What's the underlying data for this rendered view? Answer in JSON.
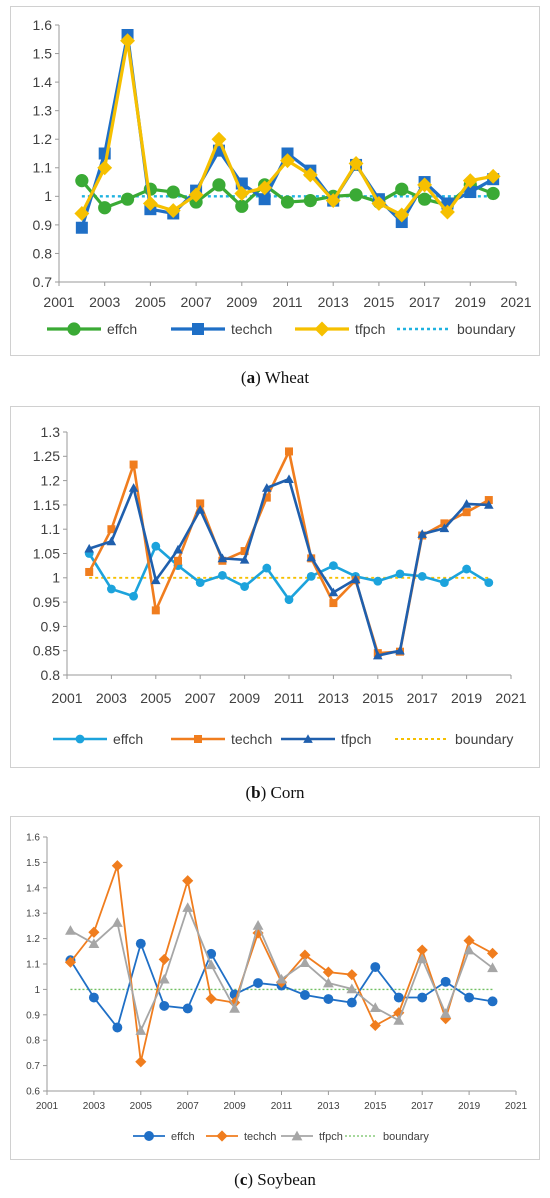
{
  "captions": [
    {
      "letter": "a",
      "open": "(",
      "close": ") ",
      "name": "Wheat"
    },
    {
      "letter": "b",
      "open": "(",
      "close": ") ",
      "name": "Corn"
    },
    {
      "letter": "c",
      "open": "(",
      "close": ") ",
      "name": "Soybean"
    }
  ],
  "chart_data": [
    {
      "type": "line",
      "title": "",
      "xlabel": "",
      "ylabel": "",
      "xlim": [
        2001,
        2021
      ],
      "ylim": [
        0.7,
        1.6
      ],
      "xticks": [
        2001,
        2003,
        2005,
        2007,
        2009,
        2011,
        2013,
        2015,
        2017,
        2019,
        2021
      ],
      "yticks": [
        0.7,
        0.8,
        0.9,
        1.0,
        1.1,
        1.2,
        1.3,
        1.4,
        1.5,
        1.6
      ],
      "ytick_labels": [
        "0.7",
        "0.8",
        "0.9",
        "1",
        "1.1",
        "1.2",
        "1.3",
        "1.4",
        "1.5",
        "1.6"
      ],
      "grid": false,
      "legend_position": "bottom",
      "x": [
        2002,
        2003,
        2004,
        2005,
        2006,
        2007,
        2008,
        2009,
        2010,
        2011,
        2012,
        2013,
        2014,
        2015,
        2016,
        2017,
        2018,
        2019,
        2020
      ],
      "series": [
        {
          "name": "effch",
          "color": "#3aaa35",
          "marker": "circle",
          "values": [
            1.055,
            0.96,
            0.99,
            1.025,
            1.015,
            0.98,
            1.04,
            0.965,
            1.04,
            0.98,
            0.985,
            1.0,
            1.005,
            0.98,
            1.025,
            0.99,
            0.97,
            1.04,
            1.01
          ]
        },
        {
          "name": "techch",
          "color": "#1f6fc6",
          "marker": "square",
          "values": [
            0.89,
            1.15,
            1.565,
            0.955,
            0.94,
            1.02,
            1.16,
            1.045,
            0.99,
            1.15,
            1.09,
            0.985,
            1.11,
            0.99,
            0.91,
            1.05,
            0.975,
            1.015,
            1.06
          ]
        },
        {
          "name": "tfpch",
          "color": "#f6c000",
          "marker": "diamond",
          "values": [
            0.94,
            1.1,
            1.545,
            0.975,
            0.95,
            1.005,
            1.2,
            1.01,
            1.03,
            1.125,
            1.075,
            0.985,
            1.115,
            0.975,
            0.935,
            1.04,
            0.945,
            1.055,
            1.07
          ]
        },
        {
          "name": "boundary",
          "color": "#1fb2e0",
          "marker": "none",
          "dashed": true,
          "values": [
            1,
            1,
            1,
            1,
            1,
            1,
            1,
            1,
            1,
            1,
            1,
            1,
            1,
            1,
            1,
            1,
            1,
            1,
            1
          ]
        }
      ]
    },
    {
      "type": "line",
      "title": "",
      "xlabel": "",
      "ylabel": "",
      "xlim": [
        2001,
        2021
      ],
      "ylim": [
        0.8,
        1.3
      ],
      "xticks": [
        2001,
        2003,
        2005,
        2007,
        2009,
        2011,
        2013,
        2015,
        2017,
        2019,
        2021
      ],
      "yticks": [
        0.8,
        0.85,
        0.9,
        0.95,
        1.0,
        1.05,
        1.1,
        1.15,
        1.2,
        1.25,
        1.3
      ],
      "ytick_labels": [
        "0.8",
        "0.85",
        "0.9",
        "0.95",
        "1",
        "1.05",
        "1.1",
        "1.15",
        "1.2",
        "1.25",
        "1.3"
      ],
      "grid": false,
      "legend_position": "bottom",
      "x": [
        2002,
        2003,
        2004,
        2005,
        2006,
        2007,
        2008,
        2009,
        2010,
        2011,
        2012,
        2013,
        2014,
        2015,
        2016,
        2017,
        2018,
        2019,
        2020
      ],
      "series": [
        {
          "name": "effch",
          "color": "#1ca3dc",
          "marker": "circle",
          "values": [
            1.05,
            0.977,
            0.962,
            1.065,
            1.025,
            0.99,
            1.005,
            0.982,
            1.02,
            0.955,
            1.003,
            1.025,
            1.003,
            0.993,
            1.008,
            1.003,
            0.99,
            1.018,
            0.99
          ]
        },
        {
          "name": "techch",
          "color": "#f07d1e",
          "marker": "square",
          "values": [
            1.012,
            1.1,
            1.233,
            0.933,
            1.035,
            1.153,
            1.035,
            1.055,
            1.165,
            1.26,
            1.04,
            0.948,
            0.995,
            0.845,
            0.848,
            1.087,
            1.112,
            1.135,
            1.16
          ]
        },
        {
          "name": "tfpch",
          "color": "#1f5fad",
          "marker": "triangle",
          "values": [
            1.06,
            1.075,
            1.185,
            0.995,
            1.058,
            1.14,
            1.04,
            1.037,
            1.185,
            1.203,
            1.042,
            0.97,
            0.997,
            0.84,
            0.85,
            1.09,
            1.102,
            1.152,
            1.15
          ]
        },
        {
          "name": "boundary",
          "color": "#f6c000",
          "marker": "none",
          "dashed": true,
          "values": [
            1,
            1,
            1,
            1,
            1,
            1,
            1,
            1,
            1,
            1,
            1,
            1,
            1,
            1,
            1,
            1,
            1,
            1,
            1
          ]
        }
      ]
    },
    {
      "type": "line",
      "title": "",
      "xlabel": "",
      "ylabel": "",
      "xlim": [
        2001,
        2021
      ],
      "ylim": [
        0.6,
        1.6
      ],
      "xticks": [
        2001,
        2003,
        2005,
        2007,
        2009,
        2011,
        2013,
        2015,
        2017,
        2019,
        2021
      ],
      "yticks": [
        0.6,
        0.7,
        0.8,
        0.9,
        1.0,
        1.1,
        1.2,
        1.3,
        1.4,
        1.5,
        1.6
      ],
      "ytick_labels": [
        "0.6",
        "0.7",
        "0.8",
        "0.9",
        "1",
        "1.1",
        "1.2",
        "1.3",
        "1.4",
        "1.5",
        "1.6"
      ],
      "grid": false,
      "legend_position": "bottom",
      "x": [
        2002,
        2003,
        2004,
        2005,
        2006,
        2007,
        2008,
        2009,
        2010,
        2011,
        2012,
        2013,
        2014,
        2015,
        2016,
        2017,
        2018,
        2019,
        2020
      ],
      "series": [
        {
          "name": "effch",
          "color": "#1f6fc6",
          "marker": "circle",
          "values": [
            1.115,
            0.968,
            0.85,
            1.18,
            0.935,
            0.925,
            1.14,
            0.98,
            1.025,
            1.015,
            0.978,
            0.962,
            0.948,
            1.088,
            0.968,
            0.968,
            1.03,
            0.968,
            0.953
          ]
        },
        {
          "name": "techch",
          "color": "#f07d1e",
          "marker": "diamond",
          "values": [
            1.107,
            1.225,
            1.487,
            0.715,
            1.118,
            1.428,
            0.963,
            0.948,
            1.222,
            1.028,
            1.135,
            1.068,
            1.058,
            0.858,
            0.908,
            1.155,
            0.885,
            1.192,
            1.142
          ]
        },
        {
          "name": "tfpch",
          "color": "#a6a6a6",
          "marker": "triangle",
          "values": [
            1.232,
            1.18,
            1.263,
            0.838,
            1.04,
            1.322,
            1.097,
            0.925,
            1.252,
            1.04,
            1.105,
            1.025,
            1.002,
            0.928,
            0.878,
            1.12,
            0.905,
            1.155,
            1.085
          ]
        },
        {
          "name": "boundary",
          "color": "#70c060",
          "marker": "none",
          "dashed": true,
          "values": [
            1,
            1,
            1,
            1,
            1,
            1,
            1,
            1,
            1,
            1,
            1,
            1,
            1,
            1,
            1,
            1,
            1,
            1,
            1
          ]
        }
      ]
    }
  ]
}
